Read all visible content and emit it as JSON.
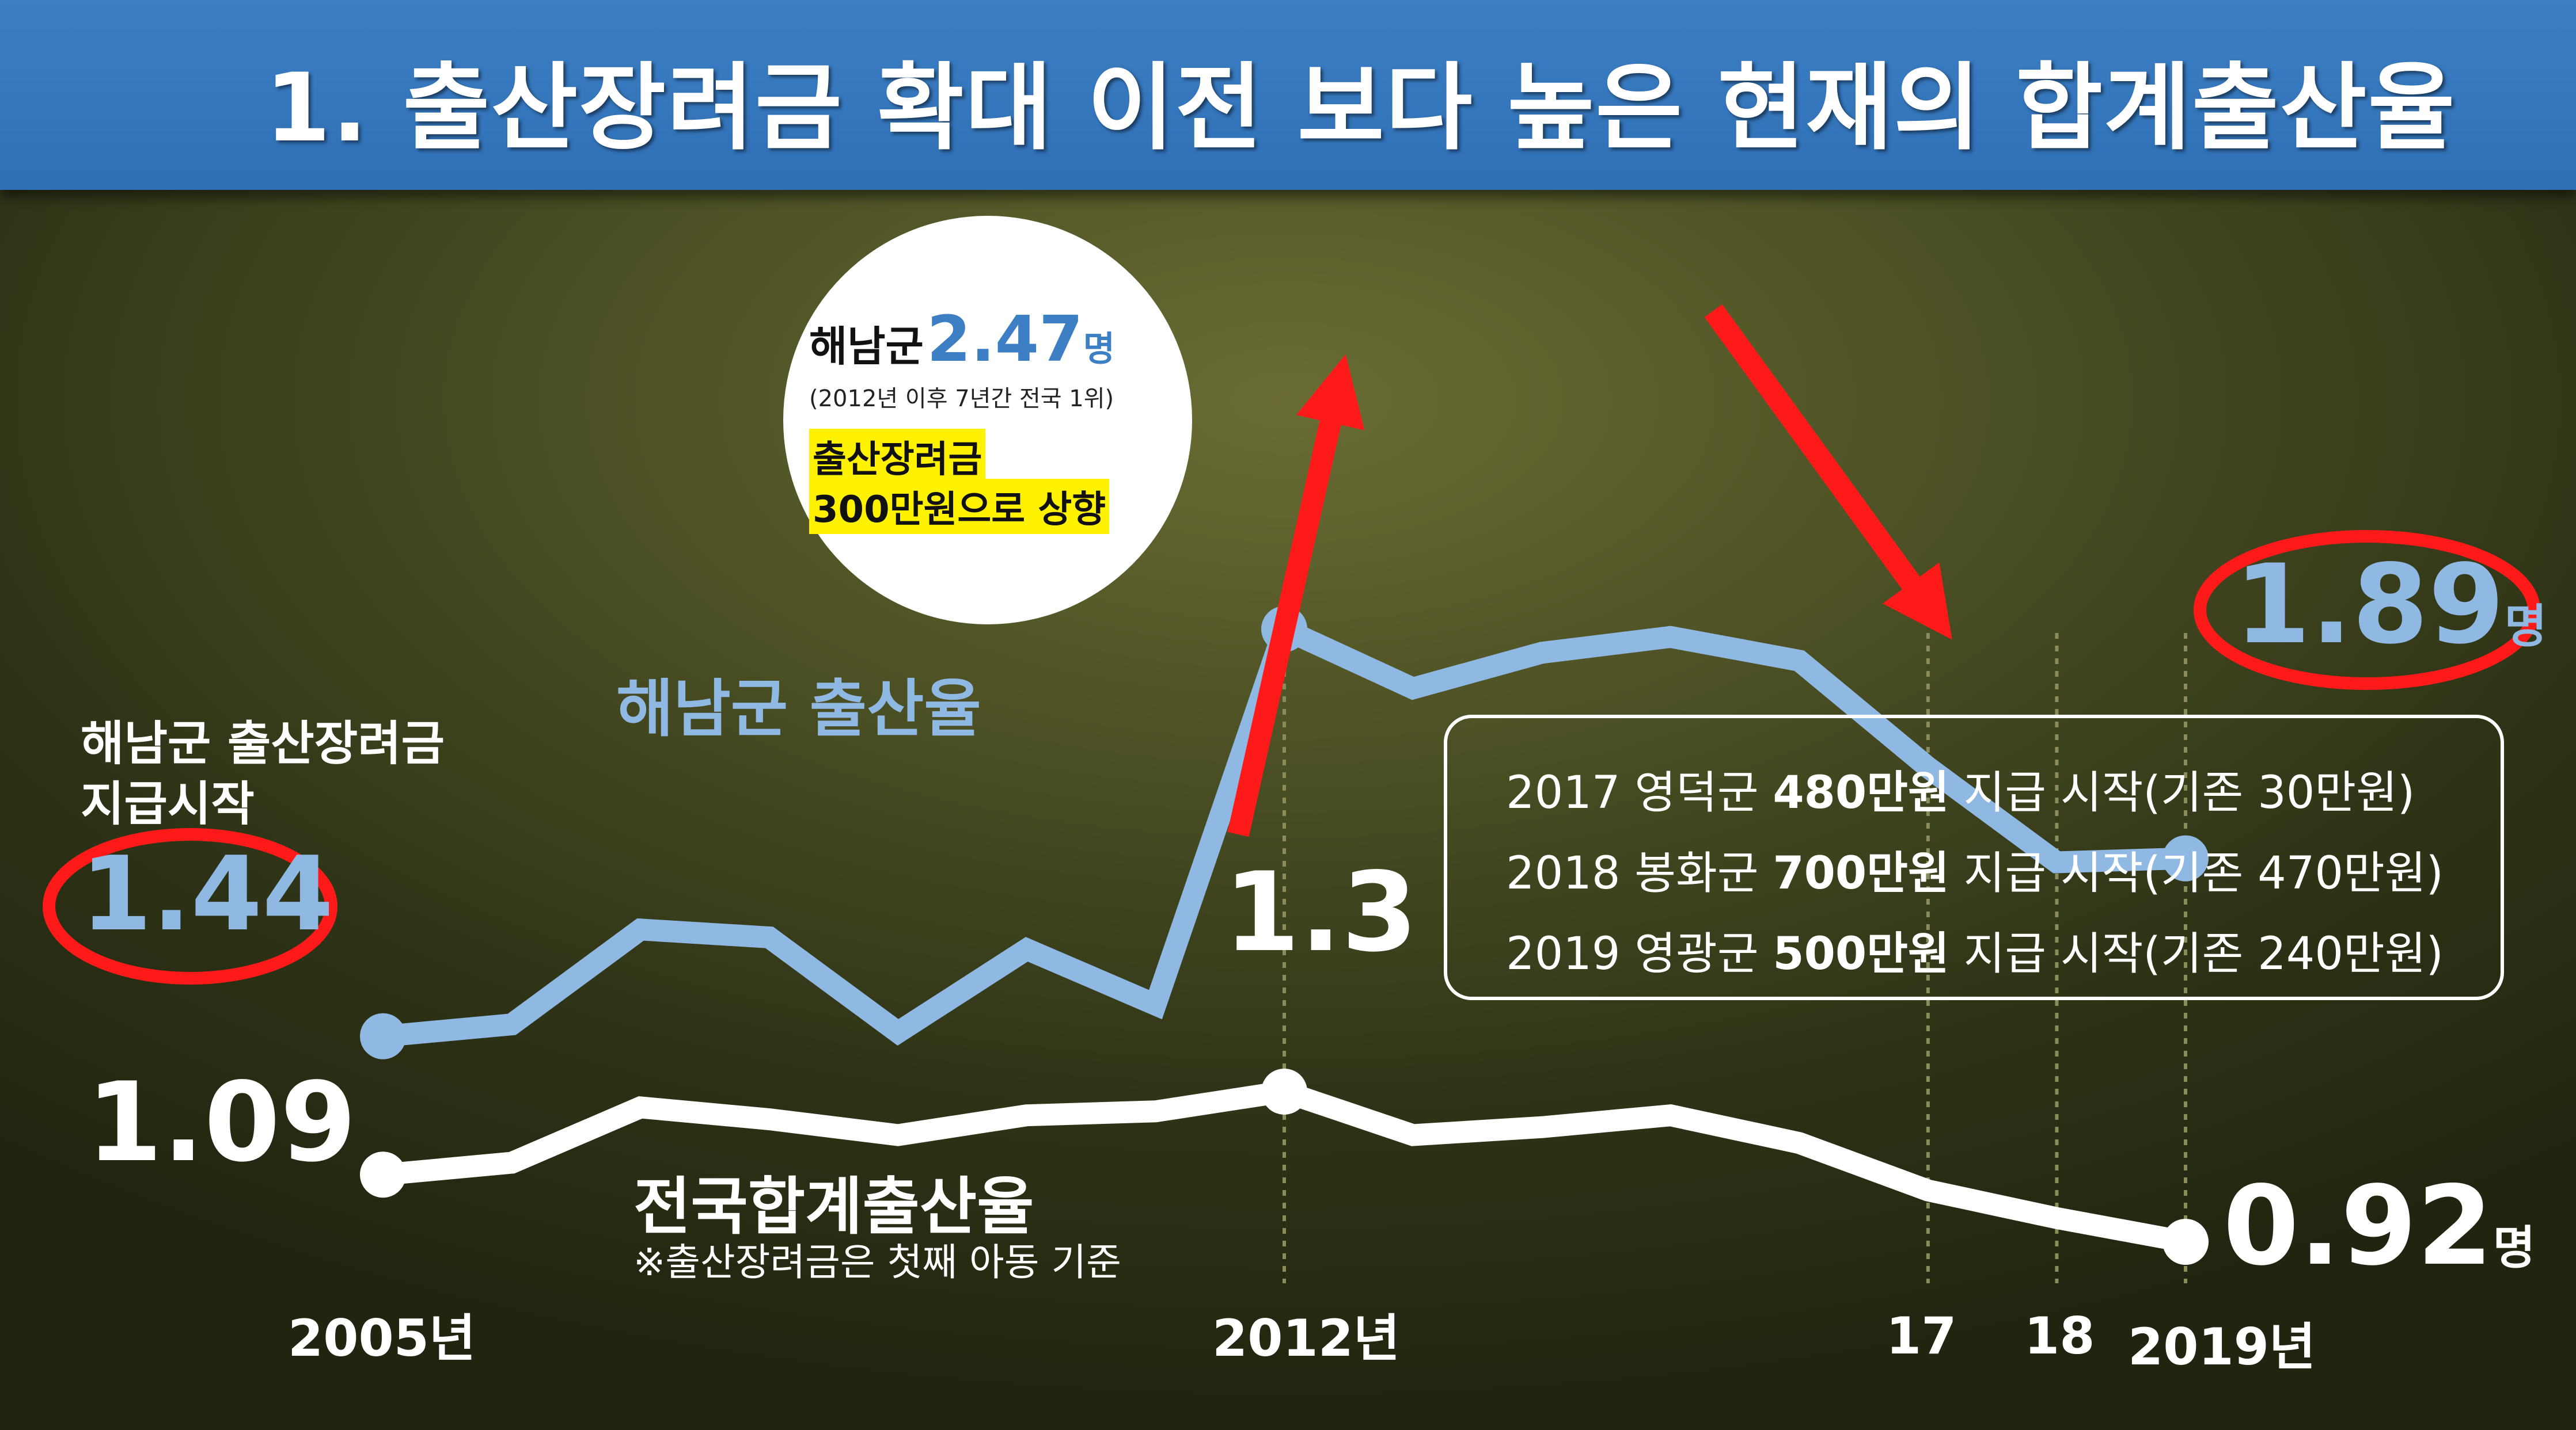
{
  "title": "1. 출산장려금 확대 이전 보다 높은 현재의 합계출산율",
  "chart_data": {
    "type": "line",
    "x": [
      2005,
      2006,
      2007,
      2008,
      2009,
      2010,
      2011,
      2012,
      2013,
      2014,
      2015,
      2016,
      2017,
      2018,
      2019
    ],
    "series": [
      {
        "name": "해남군 출산율",
        "color": "#8fb8e2",
        "values": [
          1.44,
          1.47,
          1.71,
          1.69,
          1.45,
          1.66,
          1.52,
          2.47,
          2.32,
          2.41,
          2.45,
          2.39,
          2.12,
          1.88,
          1.89
        ]
      },
      {
        "name": "전국합계출산율",
        "color": "#ffffff",
        "values": [
          1.09,
          1.12,
          1.26,
          1.23,
          1.19,
          1.24,
          1.25,
          1.3,
          1.19,
          1.21,
          1.24,
          1.17,
          1.05,
          0.98,
          0.92
        ]
      }
    ],
    "x_tick_labels": [
      {
        "x": 2005,
        "label": "2005년"
      },
      {
        "x": 2012,
        "label": "2012년"
      },
      {
        "x": 2017,
        "label": "17"
      },
      {
        "x": 2018,
        "label": "18"
      },
      {
        "x": 2019,
        "label": "2019년"
      }
    ],
    "data_labels": {
      "haenam_start": "1.44",
      "haenam_end": "1.89",
      "national_start": "1.09",
      "national_2012": "1.3",
      "national_end": "0.92",
      "unit": "명"
    },
    "series_labels": {
      "haenam": "해남군 출산율",
      "national": "전국합계출산율",
      "national_note": "※출산장려금은 첫째 아동 기준"
    },
    "annotations": {
      "start_note_line1": "해남군 출산장려금",
      "start_note_line2": "지급시작",
      "bubble_region": "해남군",
      "bubble_value": "2.47",
      "bubble_unit": "명",
      "bubble_sub": "(2012년 이후 7년간 전국 1위)",
      "bubble_highlight_line1": "출산장려금",
      "bubble_highlight_line2": "300만원으로 상향",
      "info_rows": [
        {
          "pre": "2017 영덕군 ",
          "amount": "480만원",
          "post": " 지급 시작(기존 30만원)"
        },
        {
          "pre": "2018 봉화군 ",
          "amount": "700만원",
          "post": " 지급 시작(기존 470만원)"
        },
        {
          "pre": "2019 영광군 ",
          "amount": "500만원",
          "post": " 지급 시작(기존 240만원)"
        }
      ]
    },
    "highlight_color": "#ff1a1a",
    "grid": false,
    "legend": "none"
  }
}
